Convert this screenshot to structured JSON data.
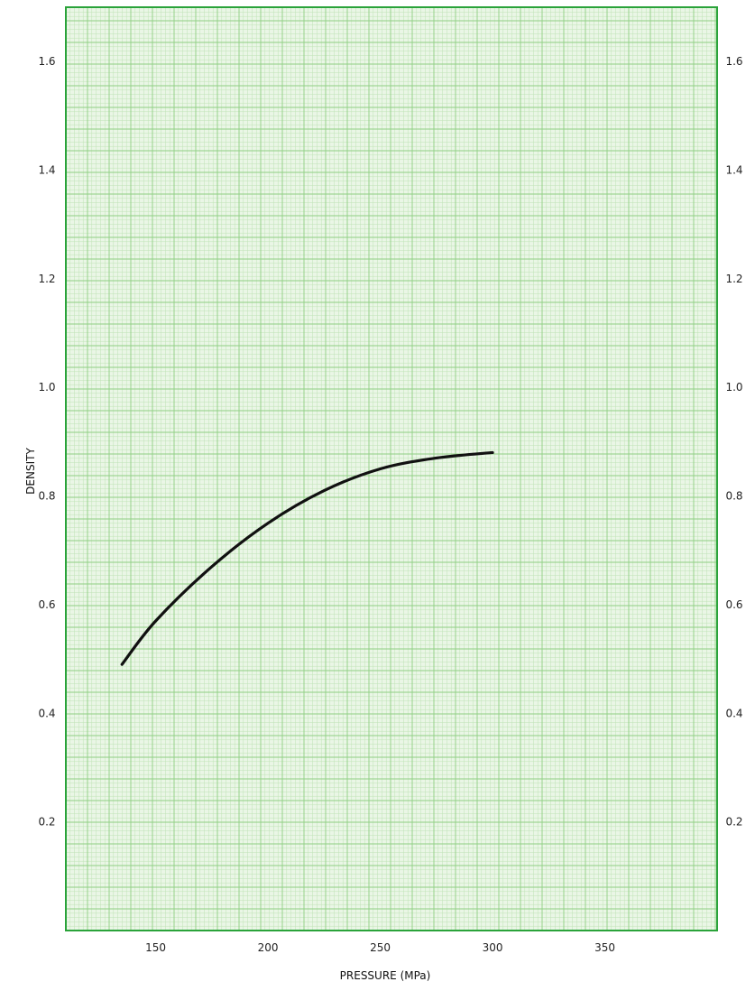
{
  "colors": {
    "page_background": "#ffffff",
    "plot_background": "#eaf6e6",
    "grid_minor": "#bfe3b5",
    "grid_major": "#8fcf82",
    "frame": "#2aa33a",
    "curve": "#111111",
    "text": "#222222"
  },
  "chart_data": {
    "type": "line",
    "title": "",
    "xlabel": "PRESSURE (MPa)",
    "ylabel": "DENSITY",
    "xlim": [
      110,
      400
    ],
    "ylim": [
      0,
      1.7
    ],
    "x_ticks": [
      150,
      200,
      250,
      300,
      350
    ],
    "x_tick_labels": [
      "150",
      "200",
      "250",
      "300",
      "350"
    ],
    "y_ticks_left": [
      0.2,
      0.4,
      0.6,
      0.8,
      1.0,
      1.2,
      1.4,
      1.6
    ],
    "y_tick_labels_left": [
      "0.2",
      "0.4",
      "0.6",
      "0.8",
      "1.0",
      "1.2",
      "1.4",
      "1.6"
    ],
    "y_ticks_right": [
      0.2,
      0.4,
      0.6,
      0.8,
      1.0,
      1.2,
      1.4,
      1.6
    ],
    "y_tick_labels_right": [
      "0.2",
      "0.4",
      "0.6",
      "0.8",
      "1.0",
      "1.2",
      "1.4",
      "1.6"
    ],
    "grid": true,
    "legend": "none",
    "series": [
      {
        "x": [
          135,
          150,
          175,
          200,
          225,
          250,
          275,
          300
        ],
        "values": [
          0.49,
          0.57,
          0.67,
          0.75,
          0.81,
          0.85,
          0.87,
          0.88
        ]
      }
    ]
  }
}
